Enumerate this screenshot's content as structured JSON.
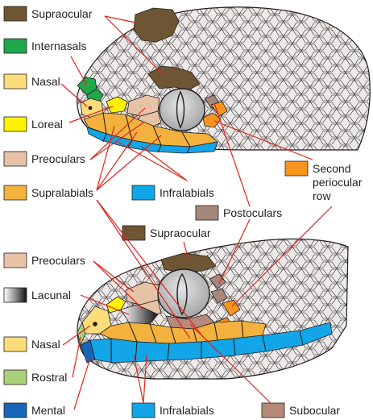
{
  "legend": [
    {
      "key": "supraocular_top",
      "label": "Supraocular",
      "color": "#6e5635"
    },
    {
      "key": "internasals",
      "label": "Internasals",
      "color": "#1fa84a"
    },
    {
      "key": "nasal_top",
      "label": "Nasal",
      "color": "#fddc7a"
    },
    {
      "key": "loreal",
      "label": "Loreal",
      "color": "#fff200"
    },
    {
      "key": "preoculars_top",
      "label": "Preoculars",
      "color": "#e8c2a6"
    },
    {
      "key": "supralabials",
      "label": "Supralabials",
      "color": "#f3b23e"
    },
    {
      "key": "infralabials_top",
      "label": "Infralabials",
      "color": "#12a6e8"
    },
    {
      "key": "second_periocular",
      "label": "Second\nperiocular\nrow",
      "color": "#f7941d"
    },
    {
      "key": "postoculars",
      "label": "Postoculars",
      "color": "#a5877b"
    },
    {
      "key": "supraocular_bottom",
      "label": "Supraocular",
      "color": "#6e5635"
    },
    {
      "key": "preoculars_bottom",
      "label": "Preoculars",
      "color": "#e8c2a6"
    },
    {
      "key": "lacunal",
      "label": "Lacunal",
      "color": "gradient"
    },
    {
      "key": "nasal_bottom",
      "label": "Nasal",
      "color": "#fddc7a"
    },
    {
      "key": "rostral",
      "label": "Rostral",
      "color": "#a9d17b"
    },
    {
      "key": "mental",
      "label": "Mental",
      "color": "#1666b8"
    },
    {
      "key": "infralabials_bottom",
      "label": "Infralabials",
      "color": "#12a6e8"
    },
    {
      "key": "subocular",
      "label": "Subocular",
      "color": "#b58a7b"
    }
  ],
  "colors": {
    "scale_fill": "#ece9e8",
    "outline": "#231f20",
    "leader": "#e2231a",
    "eye": "#b7b9bb"
  }
}
